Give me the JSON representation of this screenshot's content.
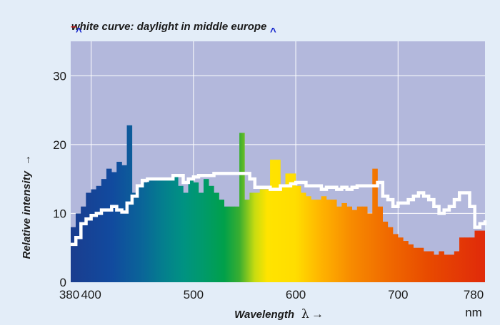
{
  "chart_data": {
    "type": "bar",
    "annotation": "white curve: daylight in middle europe",
    "xlabel": "Wavelength",
    "xlabel_symbol": "λ",
    "xlabel_arrow": "→",
    "ylabel": "Relative intensity",
    "ylabel_arrow": "→",
    "x_unit": "nm",
    "xlim": [
      380,
      785
    ],
    "ylim": [
      0,
      35
    ],
    "x_ticks": [
      380,
      400,
      500,
      600,
      700,
      780
    ],
    "y_ticks": [
      0,
      10,
      20,
      30
    ],
    "grid": true,
    "colors": {
      "plot_bg": "#b3b8dc",
      "gridline": "#ffffff",
      "daylight": "#ffffff",
      "page_bg": "#e3edf8"
    },
    "bin_width_nm": 5,
    "spectrum_bins": [
      {
        "x": 380,
        "y": 8.0
      },
      {
        "x": 385,
        "y": 10.0
      },
      {
        "x": 390,
        "y": 11.0
      },
      {
        "x": 395,
        "y": 13.0
      },
      {
        "x": 400,
        "y": 13.5
      },
      {
        "x": 405,
        "y": 14.0
      },
      {
        "x": 410,
        "y": 15.0
      },
      {
        "x": 415,
        "y": 16.5
      },
      {
        "x": 420,
        "y": 16.0
      },
      {
        "x": 425,
        "y": 17.5
      },
      {
        "x": 430,
        "y": 17.0
      },
      {
        "x": 435,
        "y": 22.8
      },
      {
        "x": 440,
        "y": 13.0
      },
      {
        "x": 445,
        "y": 14.0
      },
      {
        "x": 450,
        "y": 14.5
      },
      {
        "x": 455,
        "y": 15.0
      },
      {
        "x": 460,
        "y": 15.0
      },
      {
        "x": 465,
        "y": 15.0
      },
      {
        "x": 470,
        "y": 15.0
      },
      {
        "x": 475,
        "y": 15.0
      },
      {
        "x": 480,
        "y": 15.5
      },
      {
        "x": 485,
        "y": 14.0
      },
      {
        "x": 490,
        "y": 13.0
      },
      {
        "x": 495,
        "y": 15.0
      },
      {
        "x": 500,
        "y": 14.5
      },
      {
        "x": 505,
        "y": 13.0
      },
      {
        "x": 510,
        "y": 15.0
      },
      {
        "x": 515,
        "y": 14.0
      },
      {
        "x": 520,
        "y": 13.0
      },
      {
        "x": 525,
        "y": 12.0
      },
      {
        "x": 530,
        "y": 11.0
      },
      {
        "x": 535,
        "y": 11.0
      },
      {
        "x": 540,
        "y": 11.0
      },
      {
        "x": 545,
        "y": 21.7
      },
      {
        "x": 550,
        "y": 12.0
      },
      {
        "x": 555,
        "y": 13.0
      },
      {
        "x": 560,
        "y": 13.0
      },
      {
        "x": 565,
        "y": 13.5
      },
      {
        "x": 570,
        "y": 13.5
      },
      {
        "x": 575,
        "y": 17.8
      },
      {
        "x": 580,
        "y": 17.8
      },
      {
        "x": 585,
        "y": 14.0
      },
      {
        "x": 590,
        "y": 15.8
      },
      {
        "x": 595,
        "y": 15.8
      },
      {
        "x": 600,
        "y": 14.0
      },
      {
        "x": 605,
        "y": 13.0
      },
      {
        "x": 610,
        "y": 12.5
      },
      {
        "x": 615,
        "y": 12.0
      },
      {
        "x": 620,
        "y": 12.0
      },
      {
        "x": 625,
        "y": 12.5
      },
      {
        "x": 630,
        "y": 12.0
      },
      {
        "x": 635,
        "y": 12.0
      },
      {
        "x": 640,
        "y": 11.0
      },
      {
        "x": 645,
        "y": 11.5
      },
      {
        "x": 650,
        "y": 11.0
      },
      {
        "x": 655,
        "y": 10.5
      },
      {
        "x": 660,
        "y": 11.0
      },
      {
        "x": 665,
        "y": 11.0
      },
      {
        "x": 670,
        "y": 10.0
      },
      {
        "x": 675,
        "y": 16.5
      },
      {
        "x": 680,
        "y": 11.0
      },
      {
        "x": 685,
        "y": 8.8
      },
      {
        "x": 690,
        "y": 8.0
      },
      {
        "x": 695,
        "y": 7.0
      },
      {
        "x": 700,
        "y": 6.5
      },
      {
        "x": 705,
        "y": 6.0
      },
      {
        "x": 710,
        "y": 5.5
      },
      {
        "x": 715,
        "y": 5.0
      },
      {
        "x": 720,
        "y": 5.0
      },
      {
        "x": 725,
        "y": 4.5
      },
      {
        "x": 730,
        "y": 4.5
      },
      {
        "x": 735,
        "y": 4.0
      },
      {
        "x": 740,
        "y": 4.5
      },
      {
        "x": 745,
        "y": 4.0
      },
      {
        "x": 750,
        "y": 4.0
      },
      {
        "x": 755,
        "y": 4.5
      },
      {
        "x": 760,
        "y": 6.5
      },
      {
        "x": 765,
        "y": 6.5
      },
      {
        "x": 770,
        "y": 6.5
      },
      {
        "x": 775,
        "y": 7.5
      },
      {
        "x": 780,
        "y": 7.5
      }
    ],
    "daylight_curve": {
      "x": [
        380,
        385,
        390,
        395,
        400,
        405,
        410,
        415,
        420,
        425,
        430,
        435,
        440,
        445,
        450,
        455,
        460,
        465,
        470,
        475,
        480,
        485,
        490,
        495,
        500,
        505,
        510,
        515,
        520,
        525,
        530,
        535,
        540,
        545,
        550,
        555,
        560,
        565,
        570,
        575,
        580,
        585,
        590,
        595,
        600,
        605,
        610,
        615,
        620,
        625,
        630,
        635,
        640,
        645,
        650,
        655,
        660,
        665,
        670,
        675,
        680,
        685,
        690,
        695,
        700,
        705,
        710,
        715,
        720,
        725,
        730,
        735,
        740,
        745,
        750,
        755,
        760,
        765,
        770,
        775,
        780,
        785
      ],
      "y": [
        5.5,
        6.5,
        8.5,
        9.2,
        9.7,
        10.0,
        10.5,
        10.5,
        11.0,
        10.5,
        10.2,
        11.5,
        12.5,
        14.0,
        14.8,
        15.0,
        15.0,
        15.0,
        15.0,
        15.0,
        15.5,
        15.5,
        14.5,
        15.0,
        15.3,
        15.5,
        15.5,
        15.5,
        15.8,
        15.8,
        15.8,
        15.8,
        15.8,
        15.8,
        15.8,
        15.0,
        13.8,
        13.8,
        13.8,
        13.5,
        13.5,
        14.0,
        14.0,
        14.3,
        14.5,
        14.5,
        14.0,
        14.0,
        14.0,
        13.5,
        13.8,
        13.8,
        13.5,
        13.8,
        13.5,
        13.8,
        14.0,
        14.0,
        14.0,
        14.0,
        14.5,
        12.5,
        12.0,
        11.0,
        11.5,
        11.5,
        12.0,
        12.5,
        13.0,
        12.5,
        12.0,
        11.0,
        10.0,
        10.5,
        11.0,
        12.0,
        13.0,
        13.0,
        11.0,
        8.0,
        8.5,
        9.0
      ]
    }
  }
}
